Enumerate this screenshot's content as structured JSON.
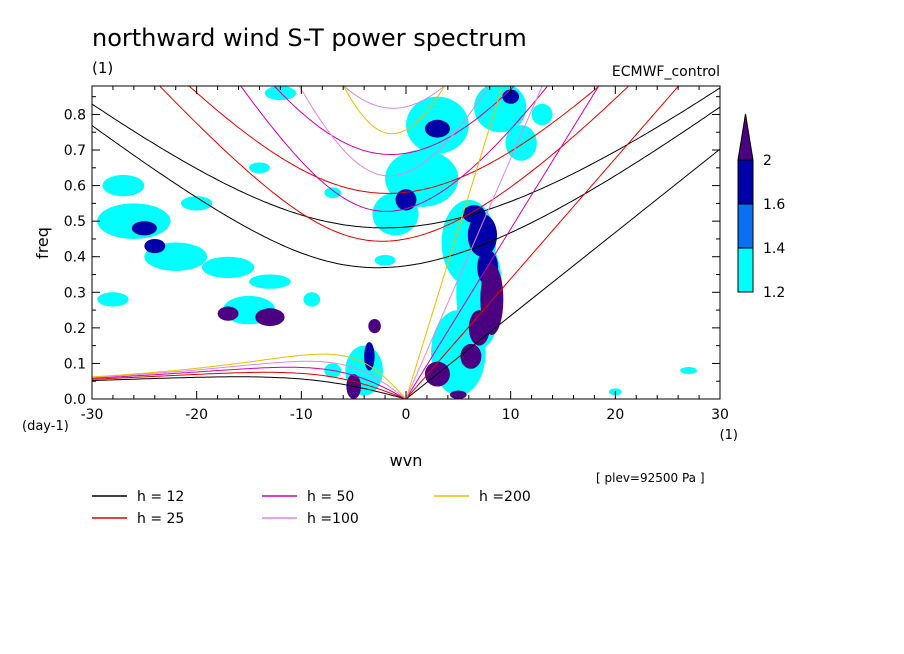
{
  "chart_data": {
    "type": "heatmap",
    "title": "northward wind S-T power spectrum",
    "subtitle_left": "(1)",
    "subtitle_right": "ECMWF_control",
    "xlabel": "wvn",
    "ylabel": "freq",
    "x_unit": "(1)",
    "y_unit": "(day-1)",
    "xlim": [
      -30,
      30
    ],
    "ylim": [
      0,
      0.88
    ],
    "x_ticks": [
      -30,
      -20,
      -10,
      0,
      10,
      20,
      30
    ],
    "x_tick_labels": [
      "-30",
      "-20",
      "-10",
      "0",
      "10",
      "20",
      "30"
    ],
    "y_ticks": [
      0,
      0.1,
      0.2,
      0.3,
      0.4,
      0.5,
      0.6,
      0.7,
      0.8
    ],
    "y_tick_labels": [
      "0.0",
      "0.1",
      "0.2",
      "0.3",
      "0.4",
      "0.5",
      "0.6",
      "0.7",
      "0.8"
    ],
    "level_note": "[ plev=92500 Pa ]",
    "colorbar": {
      "levels": [
        1.2,
        1.4,
        1.6,
        2
      ],
      "labels": [
        "1.2",
        "1.4",
        "1.6",
        "2"
      ],
      "colors": [
        "#00ffff",
        "#0a6ff0",
        "#0000a8",
        "#4b0082"
      ]
    },
    "dispersion_legend": [
      {
        "label": "h = 12",
        "h": 12,
        "color": "#000000"
      },
      {
        "label": "h = 25",
        "h": 25,
        "color": "#e00000"
      },
      {
        "label": "h = 50",
        "h": 50,
        "color": "#cc00aa"
      },
      {
        "label": "h =100",
        "h": 100,
        "color": "#dd88dd"
      },
      {
        "label": "h =200",
        "h": 200,
        "color": "#e6c000"
      }
    ],
    "contour_blobs": [
      {
        "x": 8.2,
        "y": 0.28,
        "rx": 1.1,
        "ry": 0.1,
        "level": 2
      },
      {
        "x": 7.0,
        "y": 0.2,
        "rx": 1.0,
        "ry": 0.05,
        "level": 2
      },
      {
        "x": 6.2,
        "y": 0.12,
        "rx": 1.0,
        "ry": 0.035,
        "level": 2
      },
      {
        "x": 3.0,
        "y": 0.07,
        "rx": 1.2,
        "ry": 0.035,
        "level": 2
      },
      {
        "x": 5.0,
        "y": 0.012,
        "rx": 0.8,
        "ry": 0.012,
        "level": 2
      },
      {
        "x": -5.0,
        "y": 0.035,
        "rx": 0.7,
        "ry": 0.035,
        "level": 2
      },
      {
        "x": -3.0,
        "y": 0.205,
        "rx": 0.6,
        "ry": 0.02,
        "level": 2
      },
      {
        "x": -17.0,
        "y": 0.24,
        "rx": 1.0,
        "ry": 0.02,
        "level": 2
      },
      {
        "x": -13.0,
        "y": 0.23,
        "rx": 1.4,
        "ry": 0.025,
        "level": 2
      },
      {
        "x": 7.3,
        "y": 0.46,
        "rx": 1.4,
        "ry": 0.06,
        "level": 1.6
      },
      {
        "x": 7.8,
        "y": 0.37,
        "rx": 1.0,
        "ry": 0.05,
        "level": 1.6
      },
      {
        "x": 6.5,
        "y": 0.52,
        "rx": 1.1,
        "ry": 0.025,
        "level": 1.6
      },
      {
        "x": 0.0,
        "y": 0.56,
        "rx": 1.0,
        "ry": 0.03,
        "level": 1.6
      },
      {
        "x": 3.0,
        "y": 0.76,
        "rx": 1.2,
        "ry": 0.025,
        "level": 1.6
      },
      {
        "x": 10.0,
        "y": 0.85,
        "rx": 0.8,
        "ry": 0.02,
        "level": 1.6
      },
      {
        "x": -25.0,
        "y": 0.48,
        "rx": 1.2,
        "ry": 0.02,
        "level": 1.6
      },
      {
        "x": -24.0,
        "y": 0.43,
        "rx": 1.0,
        "ry": 0.02,
        "level": 1.6
      },
      {
        "x": -3.5,
        "y": 0.12,
        "rx": 0.5,
        "ry": 0.04,
        "level": 1.6
      },
      {
        "x": 6.0,
        "y": 0.44,
        "rx": 2.6,
        "ry": 0.12,
        "level": 1.2
      },
      {
        "x": 7.0,
        "y": 0.3,
        "rx": 2.2,
        "ry": 0.16,
        "level": 1.2
      },
      {
        "x": 5.0,
        "y": 0.13,
        "rx": 2.6,
        "ry": 0.12,
        "level": 1.2
      },
      {
        "x": 1.5,
        "y": 0.62,
        "rx": 3.5,
        "ry": 0.08,
        "level": 1.2
      },
      {
        "x": 3.0,
        "y": 0.77,
        "rx": 3.0,
        "ry": 0.08,
        "level": 1.2
      },
      {
        "x": 9.0,
        "y": 0.82,
        "rx": 2.5,
        "ry": 0.07,
        "level": 1.2
      },
      {
        "x": -1.0,
        "y": 0.52,
        "rx": 2.2,
        "ry": 0.06,
        "level": 1.2
      },
      {
        "x": -26.0,
        "y": 0.5,
        "rx": 3.5,
        "ry": 0.05,
        "level": 1.2
      },
      {
        "x": -22.0,
        "y": 0.4,
        "rx": 3.0,
        "ry": 0.04,
        "level": 1.2
      },
      {
        "x": -17.0,
        "y": 0.37,
        "rx": 2.5,
        "ry": 0.03,
        "level": 1.2
      },
      {
        "x": -27.0,
        "y": 0.6,
        "rx": 2.0,
        "ry": 0.03,
        "level": 1.2
      },
      {
        "x": -15.0,
        "y": 0.25,
        "rx": 2.5,
        "ry": 0.04,
        "level": 1.2
      },
      {
        "x": -28.0,
        "y": 0.28,
        "rx": 1.5,
        "ry": 0.02,
        "level": 1.2
      },
      {
        "x": -13.0,
        "y": 0.33,
        "rx": 2.0,
        "ry": 0.02,
        "level": 1.2
      },
      {
        "x": -4.0,
        "y": 0.08,
        "rx": 1.8,
        "ry": 0.07,
        "level": 1.2
      },
      {
        "x": -14.0,
        "y": 0.65,
        "rx": 1.0,
        "ry": 0.015,
        "level": 1.2
      },
      {
        "x": -20.0,
        "y": 0.55,
        "rx": 1.5,
        "ry": 0.02,
        "level": 1.2
      },
      {
        "x": -2.0,
        "y": 0.39,
        "rx": 1.0,
        "ry": 0.015,
        "level": 1.2
      },
      {
        "x": 11.0,
        "y": 0.72,
        "rx": 1.5,
        "ry": 0.05,
        "level": 1.2
      },
      {
        "x": 13.0,
        "y": 0.8,
        "rx": 1.0,
        "ry": 0.03,
        "level": 1.2
      },
      {
        "x": -12.0,
        "y": 0.86,
        "rx": 1.5,
        "ry": 0.02,
        "level": 1.2
      },
      {
        "x": -7.0,
        "y": 0.58,
        "rx": 0.8,
        "ry": 0.015,
        "level": 1.2
      },
      {
        "x": 27.0,
        "y": 0.08,
        "rx": 0.8,
        "ry": 0.01,
        "level": 1.2
      },
      {
        "x": 20.0,
        "y": 0.02,
        "rx": 0.6,
        "ry": 0.01,
        "level": 1.2
      },
      {
        "x": -7.0,
        "y": 0.08,
        "rx": 0.8,
        "ry": 0.02,
        "level": 1.2
      },
      {
        "x": -9.0,
        "y": 0.28,
        "rx": 0.8,
        "ry": 0.02,
        "level": 1.2
      }
    ]
  }
}
